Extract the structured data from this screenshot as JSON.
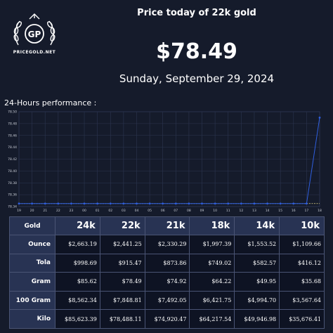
{
  "logo": {
    "initials": "GP",
    "site_name": "PRICEGOLD.NET"
  },
  "header": {
    "title": "Price today of 22k gold",
    "price": "$78.49",
    "date": "Sunday, September 29, 2024"
  },
  "chart_title": "24-Hours performance :",
  "colors": {
    "background": "#151b2b",
    "line": "#2f5fe0",
    "baseline": "#e8d98a",
    "grid": "#2c3550"
  },
  "chart_data": {
    "type": "line",
    "x": [
      "19",
      "20",
      "21",
      "22",
      "23",
      "00",
      "01",
      "02",
      "03",
      "04",
      "05",
      "06",
      "07",
      "08",
      "09",
      "10",
      "11",
      "12",
      "13",
      "14",
      "15",
      "16",
      "17",
      "18"
    ],
    "series": [
      {
        "values": [
          78.345,
          78.345,
          78.345,
          78.345,
          78.345,
          78.345,
          78.345,
          78.345,
          78.345,
          78.345,
          78.345,
          78.345,
          78.345,
          78.345,
          78.345,
          78.345,
          78.345,
          78.345,
          78.345,
          78.345,
          78.345,
          78.345,
          78.345,
          78.49
        ]
      }
    ],
    "baseline": 78.345,
    "ylim": [
      78.34,
      78.5
    ],
    "yticks": [
      "78.50",
      "78.48",
      "78.46",
      "78.44",
      "78.42",
      "78.40",
      "78.38",
      "78.36",
      "78.34"
    ],
    "grid": true,
    "title": "",
    "xlabel": "",
    "ylabel": ""
  },
  "table": {
    "corner": "Gold",
    "columns": [
      "24k",
      "22k",
      "21k",
      "18k",
      "14k",
      "10k"
    ],
    "rows": [
      {
        "label": "Ounce",
        "values": [
          "$2,663.19",
          "$2,441.25",
          "$2,330.29",
          "$1,997.39",
          "$1,553.52",
          "$1,109.66"
        ]
      },
      {
        "label": "Tola",
        "values": [
          "$998.69",
          "$915.47",
          "$873.86",
          "$749.02",
          "$582.57",
          "$416.12"
        ]
      },
      {
        "label": "Gram",
        "values": [
          "$85.62",
          "$78.49",
          "$74.92",
          "$64.22",
          "$49.95",
          "$35.68"
        ]
      },
      {
        "label": "100 Gram",
        "values": [
          "$8,562.34",
          "$7,848.81",
          "$7,492.05",
          "$6,421.75",
          "$4,994.70",
          "$3,567.64"
        ]
      },
      {
        "label": "Kilo",
        "values": [
          "$85,623.39",
          "$78,488.11",
          "$74,920.47",
          "$64,217.54",
          "$49,946.98",
          "$35,676.41"
        ]
      }
    ]
  }
}
